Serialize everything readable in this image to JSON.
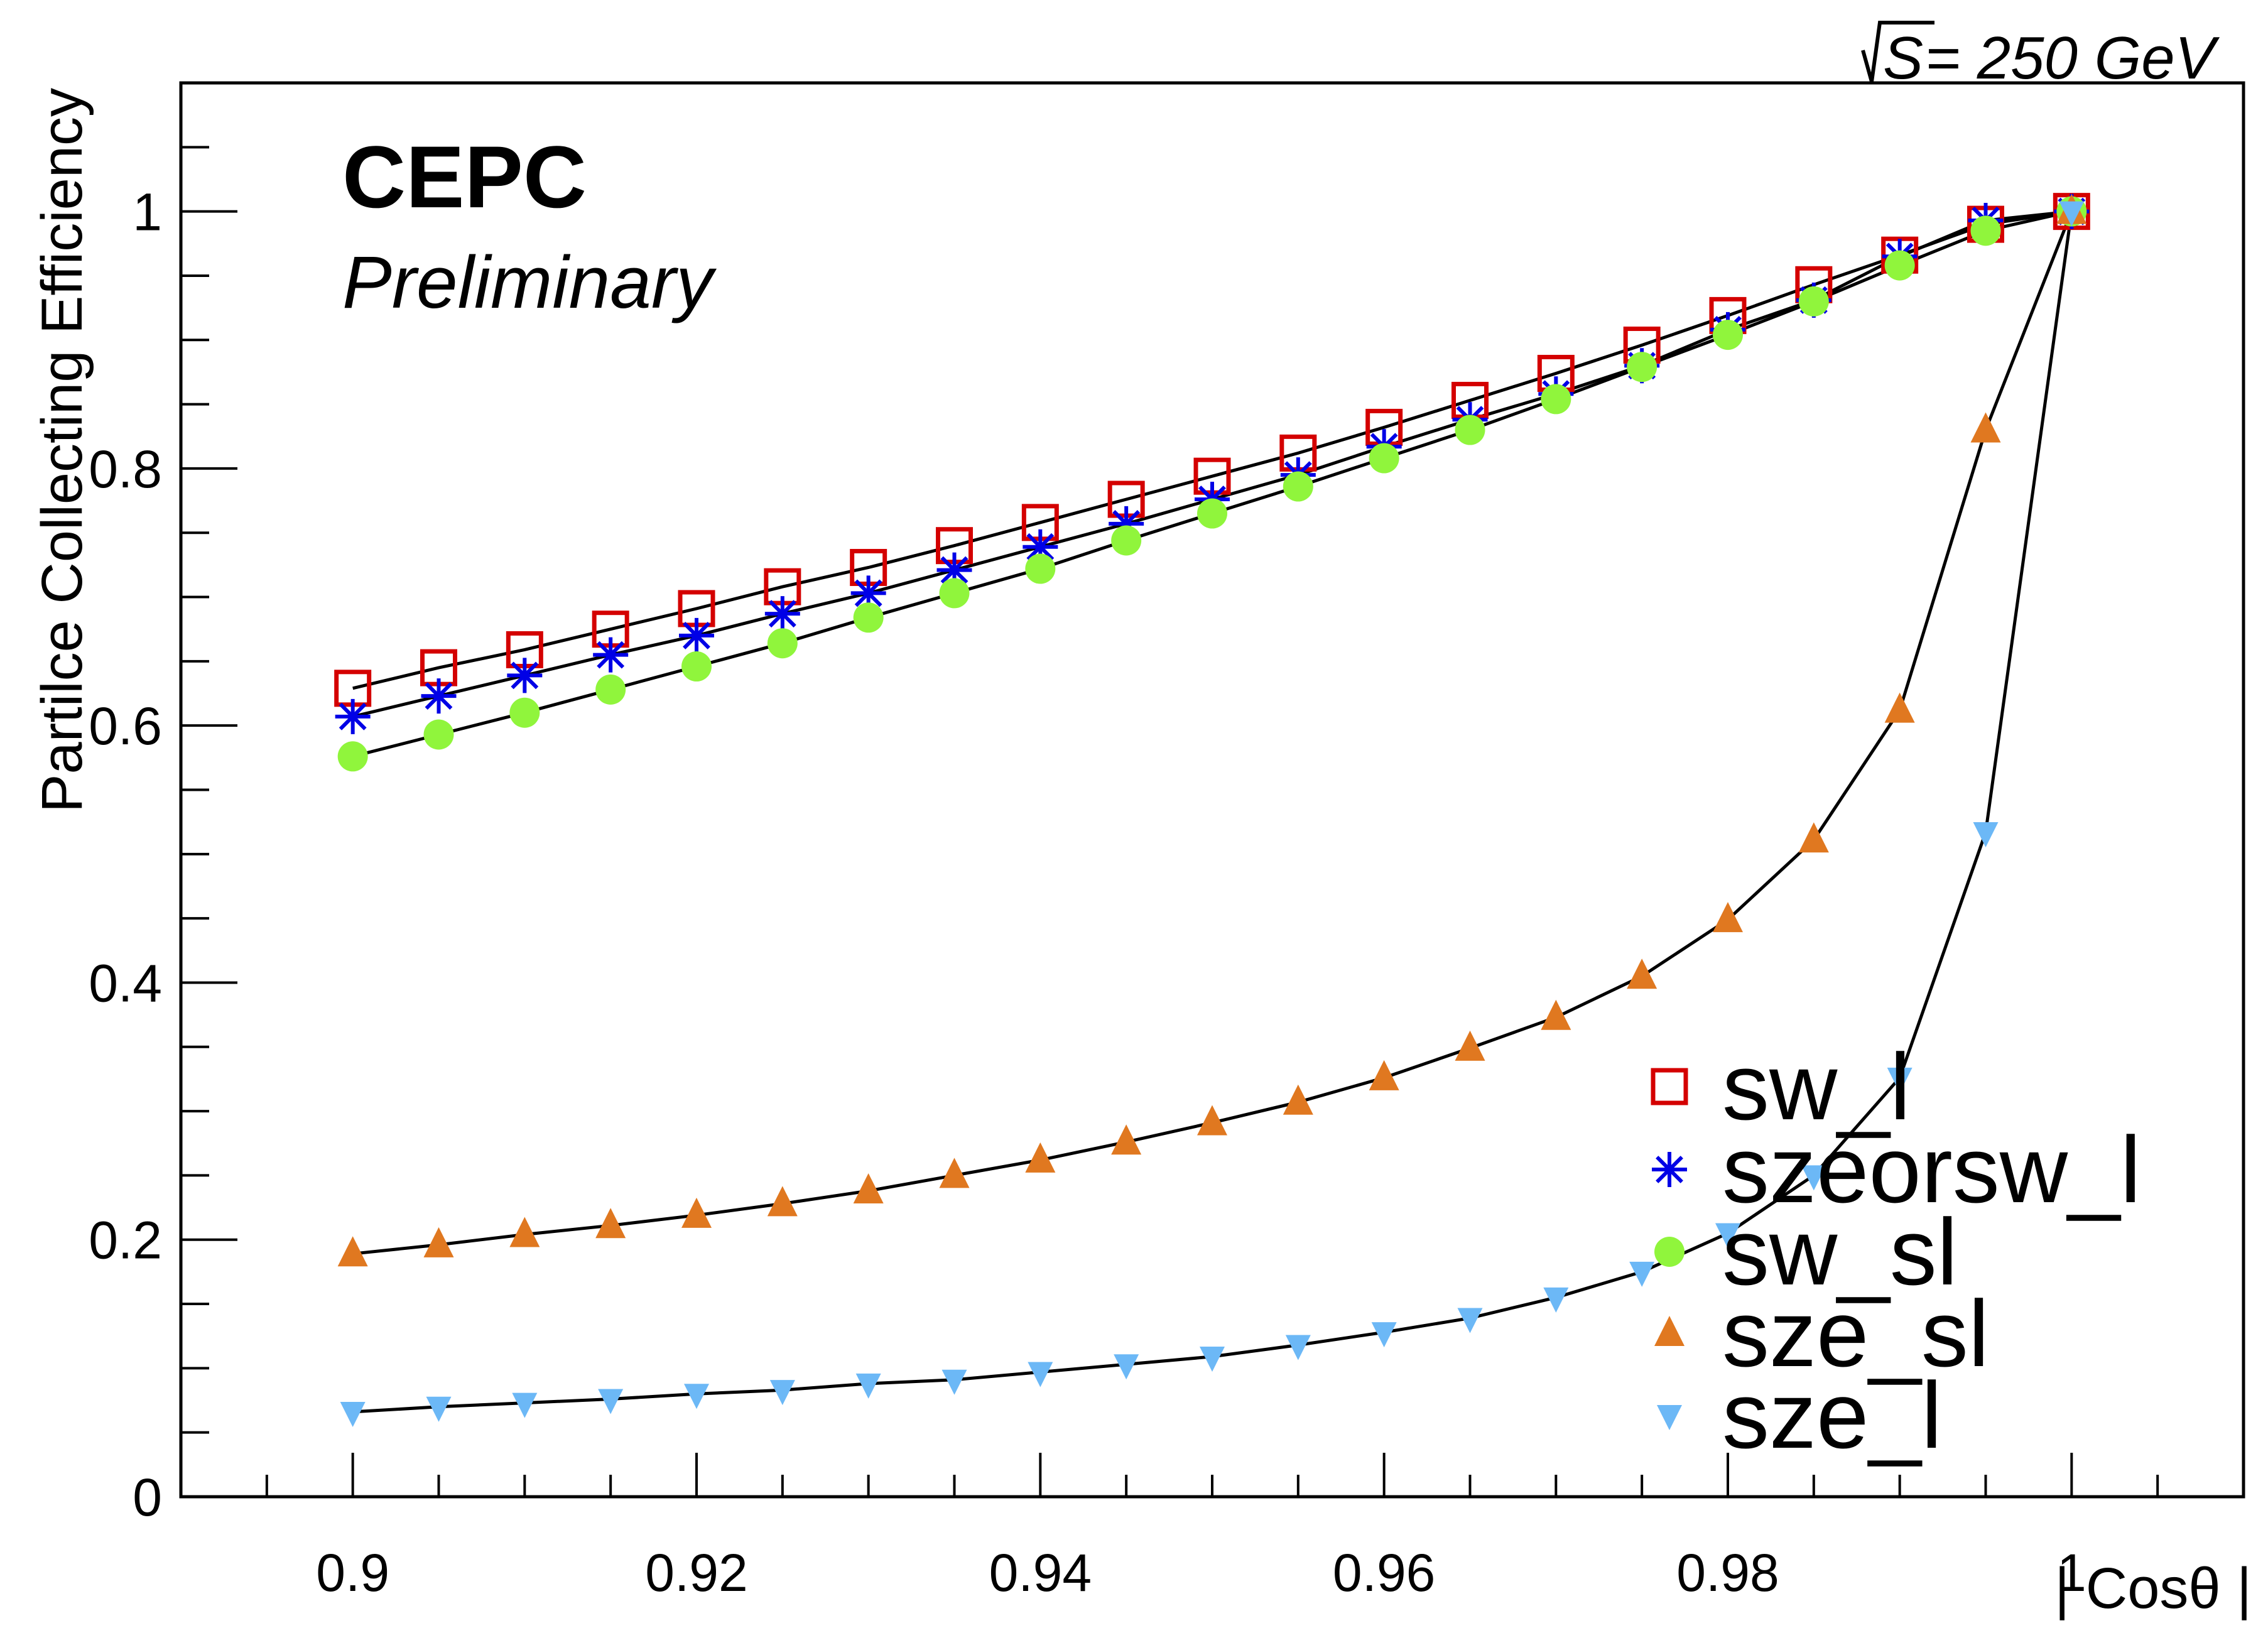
{
  "chart_data": {
    "type": "line",
    "title": "",
    "xlabel": "| Cosθ |",
    "ylabel": "Partilce Collecting Efficiency",
    "xlim": [
      0.89,
      1.01
    ],
    "ylim": [
      0,
      1.1
    ],
    "grid": false,
    "x_ticks": [
      {
        "value": 0.9,
        "label": "0.9"
      },
      {
        "value": 0.92,
        "label": "0.92"
      },
      {
        "value": 0.94,
        "label": "0.94"
      },
      {
        "value": 0.96,
        "label": "0.96"
      },
      {
        "value": 0.98,
        "label": "0.98"
      },
      {
        "value": 1.0,
        "label": "1"
      }
    ],
    "y_ticks": [
      {
        "value": 0,
        "label": "0"
      },
      {
        "value": 0.2,
        "label": "0.2"
      },
      {
        "value": 0.4,
        "label": "0.4"
      },
      {
        "value": 0.6,
        "label": "0.6"
      },
      {
        "value": 0.8,
        "label": "0.8"
      },
      {
        "value": 1.0,
        "label": "1"
      }
    ],
    "x": [
      0.9,
      0.905,
      0.91,
      0.915,
      0.92,
      0.925,
      0.93,
      0.935,
      0.94,
      0.945,
      0.95,
      0.955,
      0.96,
      0.965,
      0.97,
      0.975,
      0.98,
      0.985,
      0.99,
      0.995,
      1.0
    ],
    "series": [
      {
        "name": "sw_l",
        "marker": "open-square",
        "color": "#d40000",
        "values": [
          0.629,
          0.645,
          0.659,
          0.675,
          0.691,
          0.708,
          0.723,
          0.74,
          0.758,
          0.776,
          0.794,
          0.812,
          0.832,
          0.853,
          0.874,
          0.896,
          0.919,
          0.943,
          0.966,
          0.99,
          1.0
        ]
      },
      {
        "name": "szeorsw_l",
        "marker": "star",
        "color": "#0000e6",
        "values": [
          0.607,
          0.623,
          0.639,
          0.655,
          0.67,
          0.687,
          0.703,
          0.721,
          0.739,
          0.757,
          0.776,
          0.795,
          0.817,
          0.838,
          0.858,
          0.88,
          0.908,
          0.931,
          0.965,
          0.993,
          1.0
        ]
      },
      {
        "name": "sw_sl",
        "marker": "filled-circle",
        "color": "#90f53c",
        "values": [
          0.576,
          0.593,
          0.61,
          0.628,
          0.646,
          0.664,
          0.684,
          0.703,
          0.722,
          0.744,
          0.765,
          0.786,
          0.808,
          0.83,
          0.854,
          0.879,
          0.904,
          0.93,
          0.958,
          0.985,
          1.0
        ]
      },
      {
        "name": "sze_sl",
        "marker": "triangle-up",
        "color": "#e07820",
        "values": [
          0.189,
          0.196,
          0.204,
          0.211,
          0.219,
          0.228,
          0.238,
          0.25,
          0.262,
          0.276,
          0.291,
          0.307,
          0.326,
          0.349,
          0.373,
          0.405,
          0.449,
          0.511,
          0.612,
          0.83,
          1.0
        ]
      },
      {
        "name": "sze_l",
        "marker": "triangle-down",
        "color": "#6cb8f6",
        "values": [
          0.066,
          0.07,
          0.073,
          0.076,
          0.08,
          0.083,
          0.088,
          0.091,
          0.097,
          0.103,
          0.109,
          0.118,
          0.128,
          0.139,
          0.155,
          0.175,
          0.205,
          0.25,
          0.326,
          0.517,
          1.0
        ]
      }
    ],
    "legend_placement": "bottom-right",
    "annotations": {
      "experiment": "CEPC",
      "status": "Preliminary",
      "energy_sqrt_symbol": "√",
      "energy_var": "S",
      "energy_text": " = 250 GeV"
    }
  }
}
